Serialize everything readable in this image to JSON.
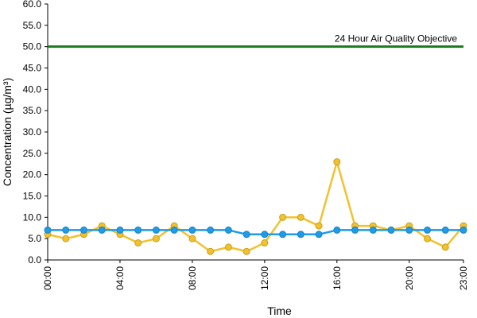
{
  "chart_data": {
    "type": "line",
    "xlabel": "Time",
    "ylabel": "Concentration (µg/m³)",
    "ylim": [
      0,
      60
    ],
    "yticks": [
      "0.0",
      "5.0",
      "10.0",
      "15.0",
      "20.0",
      "25.0",
      "30.0",
      "35.0",
      "40.0",
      "45.0",
      "50.0",
      "55.0",
      "60.0"
    ],
    "xlim": [
      0,
      23
    ],
    "xtick_hours": [
      0,
      4,
      8,
      12,
      16,
      20,
      23
    ],
    "xtick_labels": [
      "00:00",
      "04:00",
      "08:00",
      "12:00",
      "16:00",
      "20:00",
      "23:00"
    ],
    "grid": false,
    "x": [
      0,
      1,
      2,
      3,
      4,
      5,
      6,
      7,
      8,
      9,
      10,
      11,
      12,
      13,
      14,
      15,
      16,
      17,
      18,
      19,
      20,
      21,
      22,
      23
    ],
    "series": [
      {
        "color": "#f2c12e",
        "values": [
          6,
          5,
          6,
          8,
          6,
          4,
          5,
          8,
          5,
          2,
          3,
          2,
          4,
          10,
          10,
          8,
          23,
          8,
          8,
          7,
          8,
          5,
          3,
          8
        ]
      },
      {
        "color": "#1f9be8",
        "values": [
          7,
          7,
          7,
          7,
          7,
          7,
          7,
          7,
          7,
          7,
          7,
          6,
          6,
          6,
          6,
          6,
          7,
          7,
          7,
          7,
          7,
          7,
          7,
          7
        ]
      }
    ],
    "reference_line": {
      "value": 50,
      "label": "24 Hour Air Quality Objective",
      "color": "#1e7a1e"
    }
  }
}
